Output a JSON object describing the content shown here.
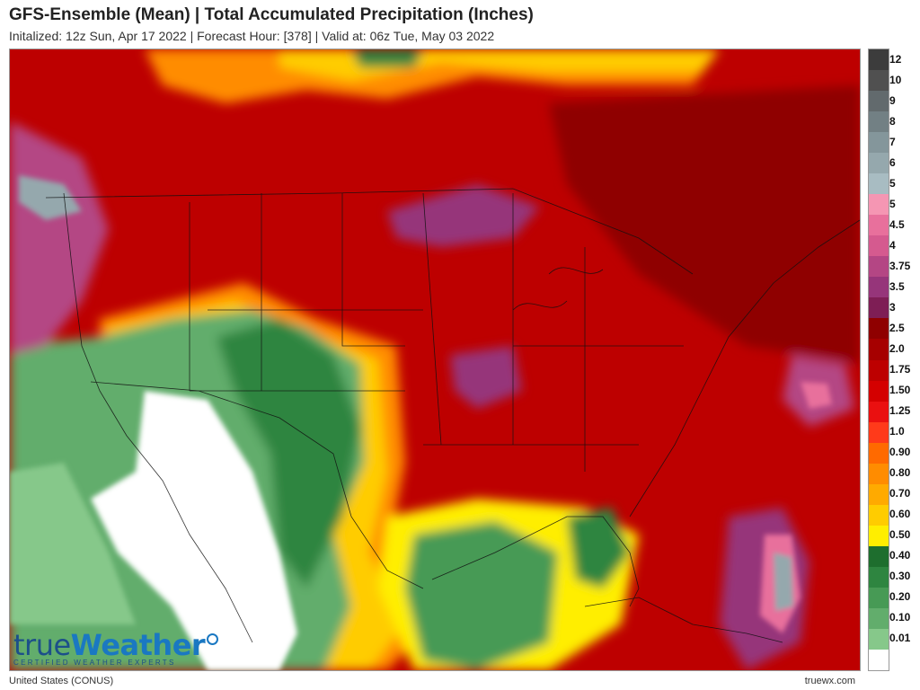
{
  "title": "GFS-Ensemble (Mean) | Total Accumulated Precipitation (Inches)",
  "subtitle": "Initalized: 12z Sun, Apr 17 2022 | Forecast Hour: [378] | Valid at: 06z Tue, May 03 2022",
  "region": "United States (CONUS)",
  "site": "truewx.com",
  "logo": {
    "part1": "true",
    "part2": "Weather",
    "tagline": "CERTIFIED WEATHER EXPERTS"
  },
  "legend": [
    {
      "label": "12",
      "color": "#3c3c3c"
    },
    {
      "label": "10",
      "color": "#505050"
    },
    {
      "label": "9",
      "color": "#626a6d"
    },
    {
      "label": "8",
      "color": "#728084"
    },
    {
      "label": "7",
      "color": "#84969b"
    },
    {
      "label": "6",
      "color": "#95a8ad"
    },
    {
      "label": "5",
      "color": "#a8bcc2"
    },
    {
      "label": "5",
      "color": "#f596b3"
    },
    {
      "label": "4.5",
      "color": "#e8709c"
    },
    {
      "label": "4",
      "color": "#d55a8f"
    },
    {
      "label": "3.75",
      "color": "#b44684"
    },
    {
      "label": "3.5",
      "color": "#96357a"
    },
    {
      "label": "3",
      "color": "#7e1e55"
    },
    {
      "label": "2.5",
      "color": "#8f0000"
    },
    {
      "label": "2.0",
      "color": "#a60000"
    },
    {
      "label": "1.75",
      "color": "#bd0000"
    },
    {
      "label": "1.50",
      "color": "#d40000"
    },
    {
      "label": "1.25",
      "color": "#ea1010"
    },
    {
      "label": "1.0",
      "color": "#ff3a1a"
    },
    {
      "label": "0.90",
      "color": "#ff6a00"
    },
    {
      "label": "0.80",
      "color": "#ff8c00"
    },
    {
      "label": "0.70",
      "color": "#ffaa00"
    },
    {
      "label": "0.60",
      "color": "#ffcc00"
    },
    {
      "label": "0.50",
      "color": "#ffee00"
    },
    {
      "label": "0.40",
      "color": "#1e6e2e"
    },
    {
      "label": "0.30",
      "color": "#2e8540"
    },
    {
      "label": "0.20",
      "color": "#479a55"
    },
    {
      "label": "0.10",
      "color": "#62ad6c"
    },
    {
      "label": "0.01",
      "color": "#86c88a"
    },
    {
      "label": "",
      "color": "#ffffff"
    }
  ]
}
